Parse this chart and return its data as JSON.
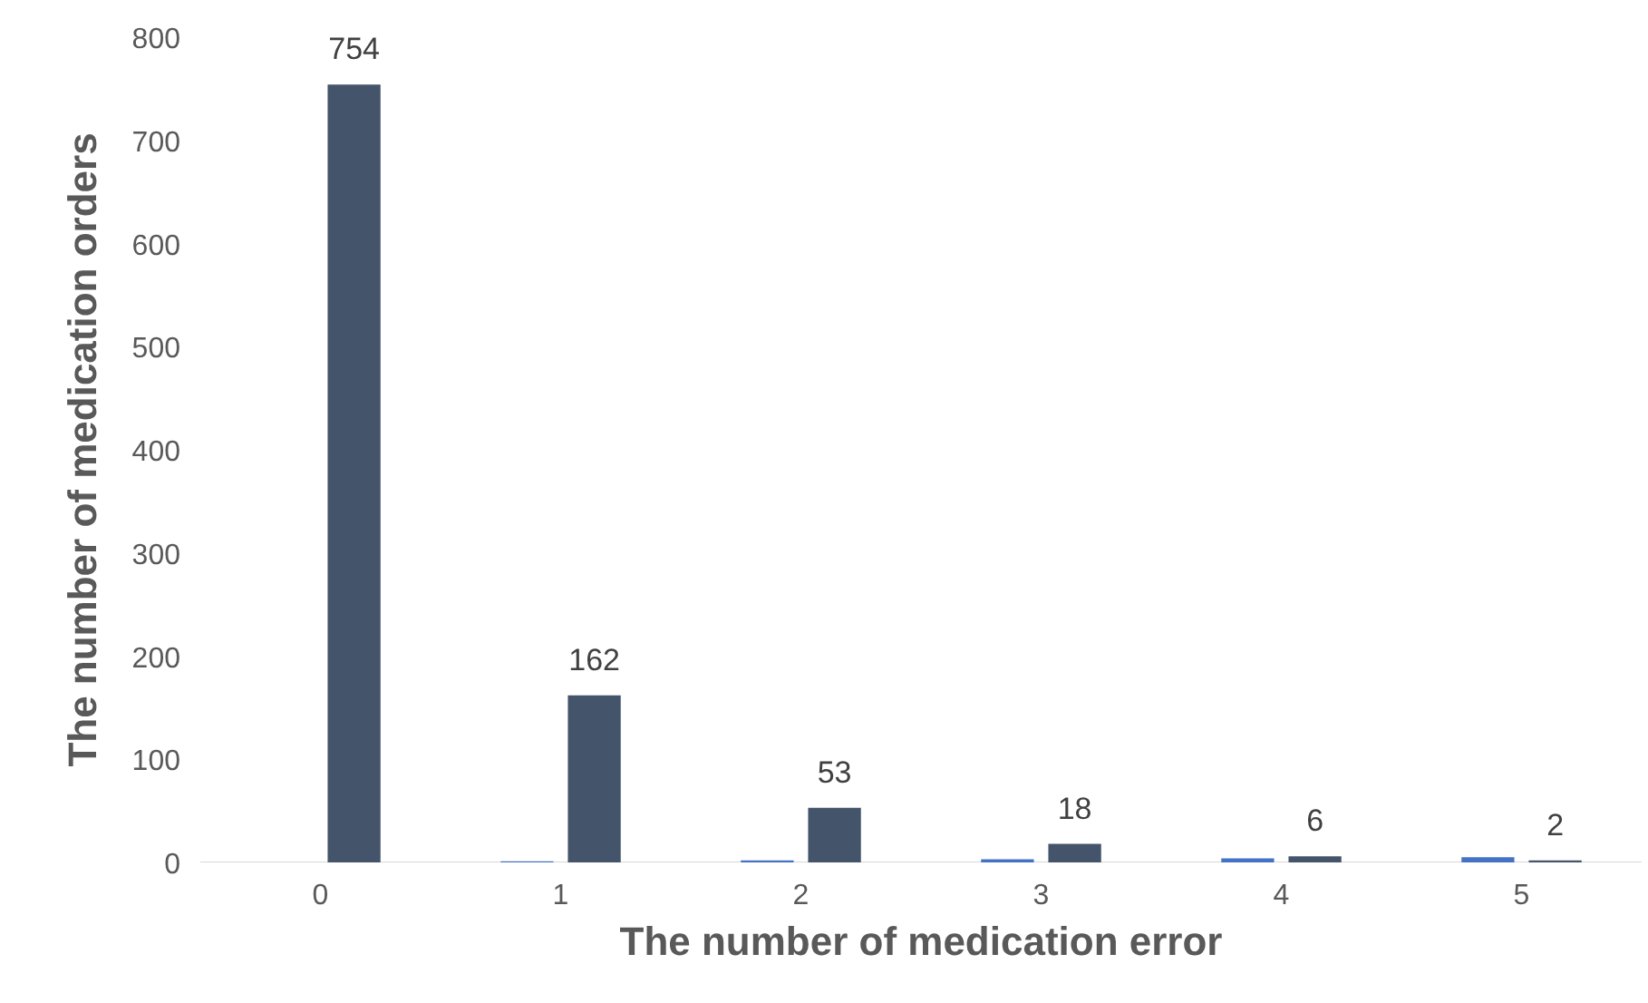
{
  "chart_data": {
    "type": "bar",
    "xlabel": "The number of medication error",
    "ylabel": "The number of medication orders",
    "categories": [
      "0",
      "1",
      "2",
      "3",
      "4",
      "5"
    ],
    "series": [
      {
        "color": "#4472c4",
        "values": [
          0,
          1,
          2,
          3,
          4,
          5
        ]
      },
      {
        "color": "#44546a",
        "values": [
          754,
          162,
          53,
          18,
          6,
          2
        ],
        "value_labels": [
          "754",
          "162",
          "53",
          "18",
          "6",
          "2"
        ]
      }
    ],
    "ylim": [
      0,
      800
    ],
    "yticks": [
      0,
      100,
      200,
      300,
      400,
      500,
      600,
      700,
      800
    ],
    "grid": false
  }
}
